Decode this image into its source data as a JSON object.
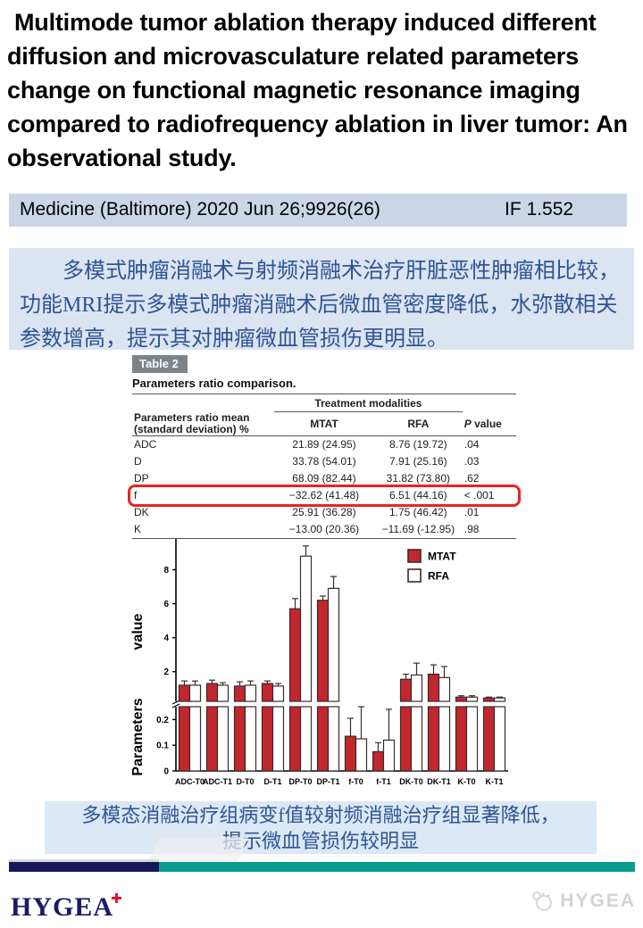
{
  "title": "Multimode tumor ablation therapy induced different diffusion and microvasculature related parameters change on functional magnetic resonance imaging compared to radiofrequency ablation in liver tumor: An observational study.",
  "journal": {
    "citation": "Medicine (Baltimore) 2020 Jun 26;9926(26)",
    "impact_factor": "IF 1.552"
  },
  "summary_cn": "多模式肿瘤消融术与射频消融术治疗肝脏恶性肿瘤相比较，功能MRI提示多模式肿瘤消融术后微血管密度降低，水弥散相关参数增高，提示其对肿瘤微血管损伤更明显。",
  "figure_table": {
    "tag": "Table 2",
    "caption": "Parameters ratio comparison.",
    "group_header": "Treatment modalities",
    "col_header_line1": "Parameters ratio mean",
    "col_header_line2": "(standard deviation) %",
    "col_mtat": "MTAT",
    "col_rfa": "RFA",
    "col_p_prefix": "P",
    "col_p_suffix": " value",
    "rows": [
      {
        "param": "ADC",
        "mtat": "21.89 (24.95)",
        "rfa": "8.76 (19.72)",
        "p": ".04",
        "highlight": false
      },
      {
        "param": "D",
        "mtat": "33.78 (54.01)",
        "rfa": "7.91 (25.16)",
        "p": ".03",
        "highlight": false
      },
      {
        "param": "DP",
        "mtat": "68.09 (82.44)",
        "rfa": "31.82 (73.80)",
        "p": ".62",
        "highlight": false
      },
      {
        "param": "f",
        "mtat": "−32.62 (41.48)",
        "rfa": "6.51 (44.16)",
        "p": "< .001",
        "highlight": true
      },
      {
        "param": "DK",
        "mtat": "25.91 (36.28)",
        "rfa": "1.75 (46.42)",
        "p": ".01",
        "highlight": false
      },
      {
        "param": "K",
        "mtat": "−13.00 (20.36)",
        "rfa": "−11.69 (-12.95)",
        "p": ".98",
        "highlight": false
      }
    ],
    "highlight_color": "#e8251e"
  },
  "chart_data": {
    "type": "bar",
    "title": "",
    "ylabel_upper": "value",
    "ylabel_lower": "Parameters",
    "categories": [
      "ADC-T0",
      "ADC-T1",
      "D-T0",
      "D-T1",
      "DP-T0",
      "DP-T1",
      "f-T0",
      "f-T1",
      "DK-T0",
      "DK-T1",
      "K-T0",
      "K-T1"
    ],
    "series": [
      {
        "name": "MTAT",
        "color": "#c1272d",
        "values": [
          1.2,
          1.3,
          1.15,
          1.3,
          5.7,
          6.2,
          0.135,
          0.075,
          1.55,
          1.85,
          0.5,
          0.45
        ],
        "errors": [
          0.25,
          0.2,
          0.25,
          0.15,
          0.6,
          0.25,
          0.07,
          0.035,
          0.3,
          0.55,
          0.08,
          0.05
        ]
      },
      {
        "name": "RFA",
        "color": "#ffffff",
        "values": [
          1.2,
          1.2,
          1.2,
          1.15,
          8.8,
          6.9,
          0.125,
          0.12,
          1.8,
          1.65,
          0.5,
          0.45
        ],
        "errors": [
          0.25,
          0.15,
          0.25,
          0.15,
          0.6,
          0.7,
          0.125,
          0.12,
          0.7,
          0.65,
          0.08,
          0.05
        ]
      }
    ],
    "axis_break": true,
    "upper_ticks": [
      2,
      4,
      6,
      8
    ],
    "lower_ticks": [
      0,
      0.1,
      0.2
    ],
    "upper_range": [
      0.25,
      9.6
    ],
    "lower_range": [
      0,
      0.25
    ],
    "grid": false,
    "legend_position": "top-right",
    "bar_stroke": "#3b2b2b"
  },
  "caption_cn": {
    "line1": "多模态消融治疗组病变f值较射频消融治疗组显著降低，",
    "line2": "提示微血管损伤较明显"
  },
  "footer": {
    "logo_text": "HYGEA",
    "watermark_text": "HYGEA",
    "navy": "#16165a",
    "teal": "#0b9a8e",
    "logo_red": "#e8112d"
  }
}
